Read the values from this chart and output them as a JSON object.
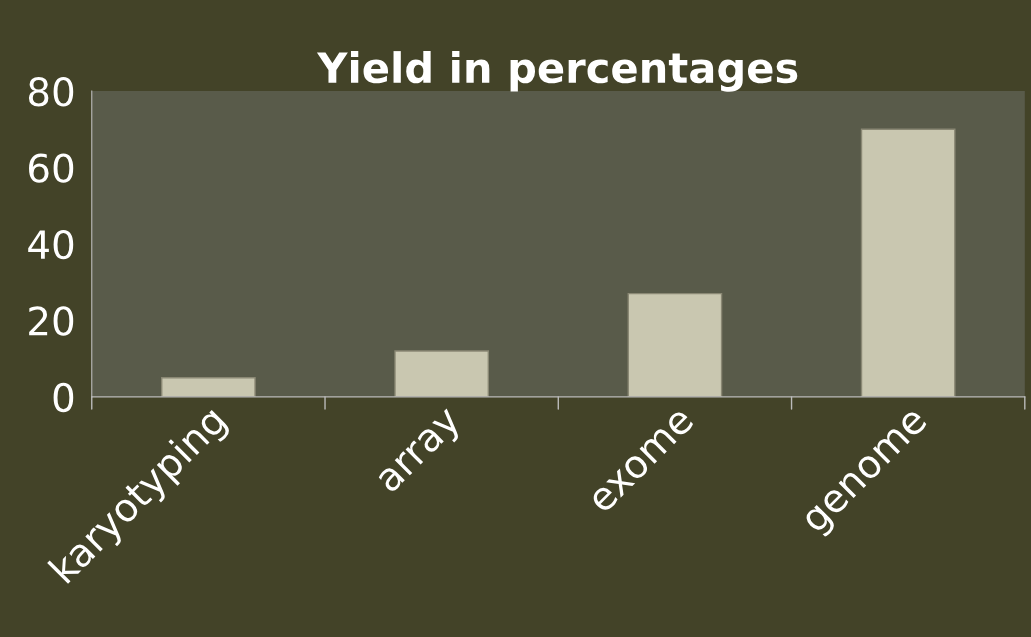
{
  "chart_data": {
    "type": "bar",
    "title": "Yield in percentages",
    "categories": [
      "karyotyping",
      "array",
      "exome",
      "genome"
    ],
    "values": [
      5,
      12,
      27,
      70
    ],
    "color": "#c9c7b0",
    "ylim": [
      0,
      80
    ],
    "yticks": [
      0,
      20,
      40,
      60,
      80
    ],
    "grid": false
  }
}
